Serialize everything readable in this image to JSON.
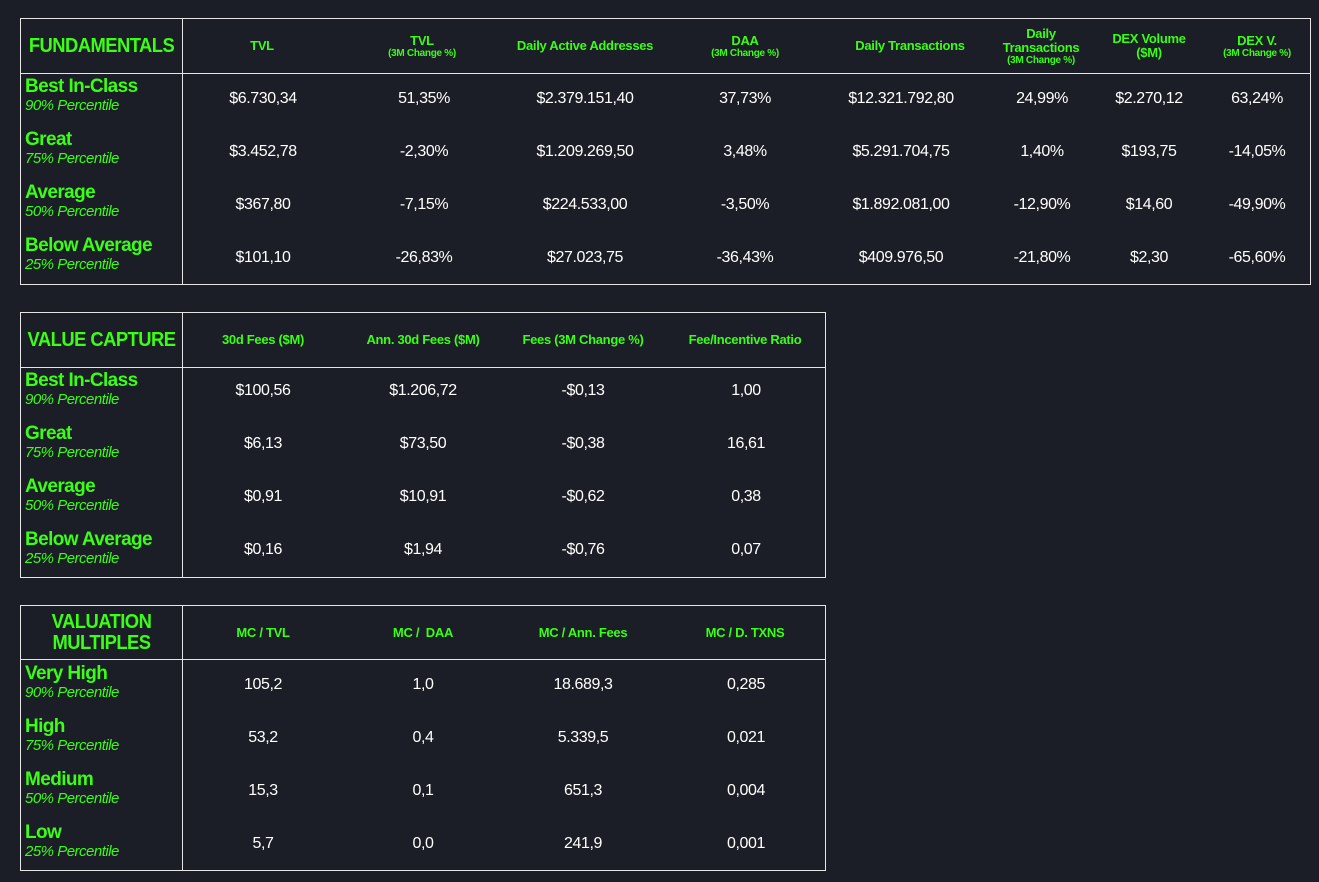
{
  "fundamentals": {
    "title": "FUNDAMENTALS",
    "columns": [
      {
        "label": "TVL",
        "sub": ""
      },
      {
        "label": "TVL",
        "sub": "(3M Change %)"
      },
      {
        "label": "Daily Active Addresses",
        "sub": ""
      },
      {
        "label": "DAA",
        "sub": "(3M Change %)"
      },
      {
        "label": "Daily Transactions",
        "sub": ""
      },
      {
        "label": "Daily Transactions",
        "sub": "(3M Change %)"
      },
      {
        "label": "DEX Volume ($M)",
        "sub": ""
      },
      {
        "label": "DEX V.",
        "sub": "(3M Change %)"
      }
    ],
    "rows": [
      {
        "label": "Best In-Class",
        "percentile": "90% Percentile",
        "values": [
          "$6.730,34",
          "51,35%",
          "$2.379.151,40",
          "37,73%",
          "$12.321.792,80",
          "24,99%",
          "$2.270,12",
          "63,24%"
        ]
      },
      {
        "label": "Great",
        "percentile": "75% Percentile",
        "values": [
          "$3.452,78",
          "-2,30%",
          "$1.209.269,50",
          "3,48%",
          "$5.291.704,75",
          "1,40%",
          "$193,75",
          "-14,05%"
        ]
      },
      {
        "label": "Average",
        "percentile": "50% Percentile",
        "values": [
          "$367,80",
          "-7,15%",
          "$224.533,00",
          "-3,50%",
          "$1.892.081,00",
          "-12,90%",
          "$14,60",
          "-49,90%"
        ]
      },
      {
        "label": "Below Average",
        "percentile": "25% Percentile",
        "values": [
          "$101,10",
          "-26,83%",
          "$27.023,75",
          "-36,43%",
          "$409.976,50",
          "-21,80%",
          "$2,30",
          "-65,60%"
        ]
      }
    ]
  },
  "value_capture": {
    "title": "VALUE CAPTURE",
    "columns": [
      {
        "label": "30d Fees ($M)",
        "sub": ""
      },
      {
        "label": "Ann. 30d Fees ($M)",
        "sub": ""
      },
      {
        "label": "Fees (3M Change %)",
        "sub": ""
      },
      {
        "label": "Fee/Incentive Ratio",
        "sub": ""
      }
    ],
    "rows": [
      {
        "label": "Best In-Class",
        "percentile": "90% Percentile",
        "values": [
          "$100,56",
          "$1.206,72",
          "-$0,13",
          "1,00"
        ]
      },
      {
        "label": "Great",
        "percentile": "75% Percentile",
        "values": [
          "$6,13",
          "$73,50",
          "-$0,38",
          "16,61"
        ]
      },
      {
        "label": "Average",
        "percentile": "50% Percentile",
        "values": [
          "$0,91",
          "$10,91",
          "-$0,62",
          "0,38"
        ]
      },
      {
        "label": "Below Average",
        "percentile": "25% Percentile",
        "values": [
          "$0,16",
          "$1,94",
          "-$0,76",
          "0,07"
        ]
      }
    ]
  },
  "valuation_multiples": {
    "title": "VALUATION MULTIPLES",
    "columns": [
      {
        "label": "MC / TVL",
        "sub": ""
      },
      {
        "label": "MC /  DAA",
        "sub": ""
      },
      {
        "label": "MC / Ann. Fees",
        "sub": ""
      },
      {
        "label": "MC / D. TXNS",
        "sub": ""
      }
    ],
    "rows": [
      {
        "label": "Very High",
        "percentile": "90% Percentile",
        "values": [
          "105,2",
          "1,0",
          "18.689,3",
          "0,285"
        ]
      },
      {
        "label": "High",
        "percentile": "75% Percentile",
        "values": [
          "53,2",
          "0,4",
          "5.339,5",
          "0,021"
        ]
      },
      {
        "label": "Medium",
        "percentile": "50% Percentile",
        "values": [
          "15,3",
          "0,1",
          "651,3",
          "0,004"
        ]
      },
      {
        "label": "Low",
        "percentile": "25% Percentile",
        "values": [
          "5,7",
          "0,0",
          "241,9",
          "0,001"
        ]
      }
    ]
  },
  "colors": {
    "accent": "#39ff14",
    "background": "#1c1e27",
    "text": "#ffffff",
    "border": "#e6e6e6"
  }
}
